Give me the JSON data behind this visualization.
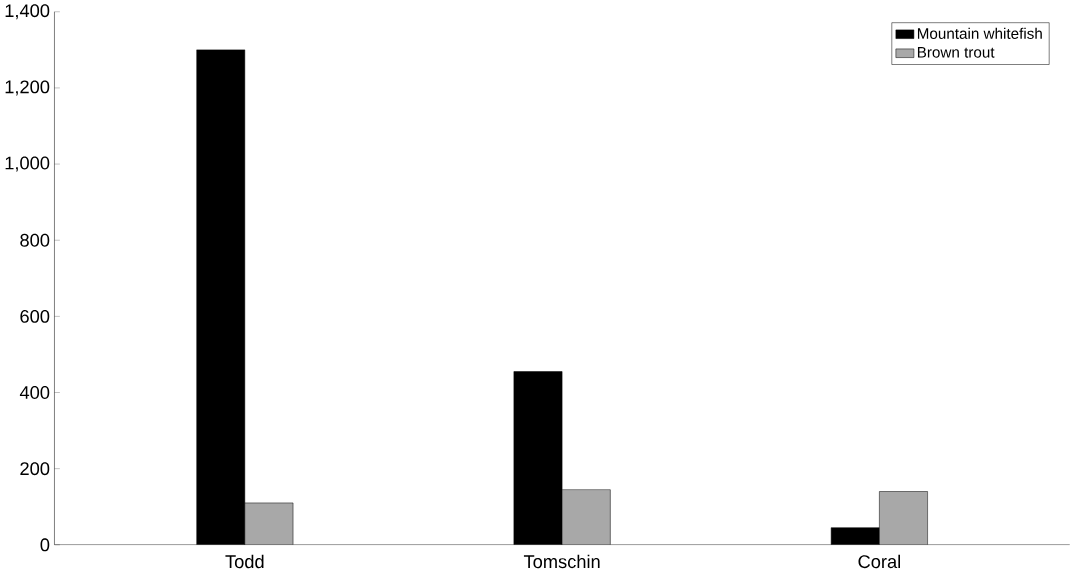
{
  "chart_data": {
    "type": "bar",
    "categories": [
      "Todd",
      "Tomschin",
      "Coral"
    ],
    "series": [
      {
        "name": "Mountain whitefish",
        "color": "#000000",
        "values": [
          1300,
          455,
          45
        ]
      },
      {
        "name": "Brown trout",
        "color": "#a8a8a8",
        "values": [
          110,
          145,
          140
        ]
      }
    ],
    "ylim": [
      0,
      1400
    ],
    "yticks": [
      {
        "value": 0,
        "label": "0"
      },
      {
        "value": 200,
        "label": "200"
      },
      {
        "value": 400,
        "label": "400"
      },
      {
        "value": 600,
        "label": "600"
      },
      {
        "value": 800,
        "label": "800"
      },
      {
        "value": 1000,
        "label": "1,000"
      },
      {
        "value": 1200,
        "label": "1,200"
      },
      {
        "value": 1400,
        "label": "1,400"
      }
    ],
    "grid": false,
    "legend": "top right"
  }
}
